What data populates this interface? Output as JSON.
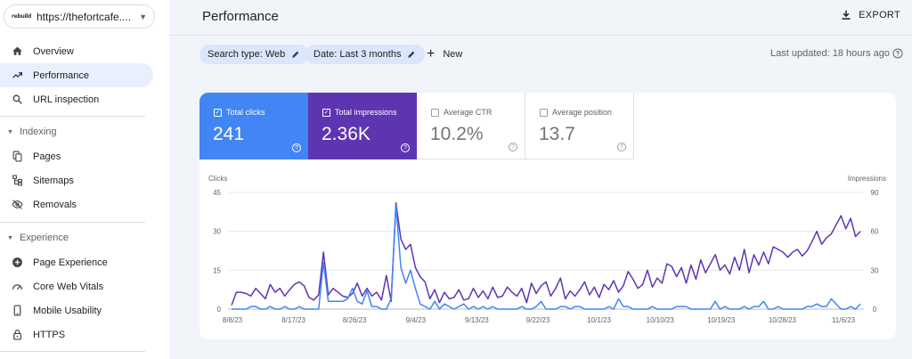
{
  "property": {
    "url": "https://thefortcafe....",
    "logo": "rebuild"
  },
  "nav": {
    "overview": "Overview",
    "performance": "Performance",
    "url_inspection": "URL inspection",
    "indexing": "Indexing",
    "pages": "Pages",
    "sitemaps": "Sitemaps",
    "removals": "Removals",
    "experience": "Experience",
    "page_experience": "Page Experience",
    "core_web_vitals": "Core Web Vitals",
    "mobile_usability": "Mobile Usability",
    "https": "HTTPS"
  },
  "header": {
    "title": "Performance",
    "export": "EXPORT",
    "last_updated": "Last updated: 18 hours ago"
  },
  "filters": {
    "search_type": "Search type: Web",
    "date": "Date: Last 3 months",
    "new": "New"
  },
  "metrics": {
    "clicks": {
      "label": "Total clicks",
      "value": "241",
      "checked": true
    },
    "impressions": {
      "label": "Total impressions",
      "value": "2.36K",
      "checked": true
    },
    "ctr": {
      "label": "Average CTR",
      "value": "10.2%",
      "checked": false
    },
    "position": {
      "label": "Average position",
      "value": "13.7",
      "checked": false
    }
  },
  "colors": {
    "clicks": "#4285f4",
    "impressions": "#5e35b1",
    "active_nav": "#e8f0fe",
    "chip": "#d9e6fb"
  },
  "chart_data": {
    "type": "line",
    "ylabel_left": "Clicks",
    "ylabel_right": "Impressions",
    "y_left_ticks": [
      "0",
      "15",
      "30",
      "45"
    ],
    "y_right_ticks": [
      "0",
      "30",
      "60",
      "90"
    ],
    "ylim_left": [
      0,
      45
    ],
    "ylim_right": [
      0,
      90
    ],
    "x_ticks": [
      "8/8/23",
      "8/17/23",
      "8/26/23",
      "9/4/23",
      "9/13/23",
      "9/22/23",
      "10/1/23",
      "10/10/23",
      "10/19/23",
      "10/28/23",
      "11/6/23"
    ],
    "grid": true,
    "series": [
      {
        "name": "Clicks",
        "axis": "left",
        "values": [
          0,
          0,
          0,
          0,
          1,
          1,
          0,
          0,
          1,
          0,
          0,
          1,
          0,
          0,
          1,
          0,
          0,
          0,
          0,
          18,
          3,
          3,
          3,
          3,
          4,
          8,
          3,
          2,
          7,
          1,
          1,
          0,
          0,
          4,
          40,
          16,
          10,
          15,
          8,
          2,
          1,
          0,
          3,
          0,
          2,
          1,
          0,
          1,
          2,
          0,
          1,
          0,
          1,
          0,
          1,
          0,
          0,
          0,
          0,
          0,
          1,
          0,
          0,
          1,
          3,
          0,
          0,
          0,
          1,
          1,
          0,
          1,
          1,
          0,
          0,
          0,
          0,
          0,
          1,
          0,
          4,
          1,
          1,
          0,
          0,
          0,
          0,
          1,
          0,
          0,
          0,
          0,
          1,
          1,
          1,
          0,
          0,
          0,
          0,
          0,
          3,
          0,
          1,
          0,
          0,
          0,
          1,
          0,
          1,
          1,
          3,
          0,
          0,
          1,
          0,
          0,
          0,
          0,
          0,
          1,
          1,
          2,
          1,
          1,
          4,
          2,
          0,
          0,
          1,
          0,
          2
        ]
      },
      {
        "name": "Impressions",
        "axis": "right",
        "values": [
          3,
          13,
          13,
          12,
          10,
          16,
          12,
          8,
          19,
          13,
          16,
          10,
          15,
          19,
          21,
          18,
          9,
          7,
          11,
          44,
          11,
          16,
          13,
          10,
          9,
          12,
          20,
          10,
          16,
          10,
          13,
          7,
          26,
          6,
          82,
          54,
          46,
          50,
          32,
          25,
          21,
          8,
          15,
          5,
          13,
          8,
          9,
          15,
          7,
          8,
          16,
          9,
          14,
          8,
          17,
          9,
          10,
          17,
          13,
          10,
          16,
          5,
          20,
          12,
          18,
          21,
          10,
          16,
          24,
          8,
          14,
          10,
          15,
          21,
          11,
          17,
          9,
          19,
          15,
          22,
          13,
          18,
          29,
          23,
          16,
          19,
          30,
          17,
          24,
          20,
          35,
          33,
          25,
          32,
          20,
          34,
          23,
          38,
          28,
          35,
          42,
          30,
          34,
          27,
          40,
          30,
          46,
          28,
          42,
          34,
          44,
          35,
          48,
          46,
          44,
          40,
          44,
          46,
          41,
          45,
          52,
          60,
          50,
          55,
          58,
          65,
          72,
          62,
          70,
          56,
          60
        ]
      }
    ]
  }
}
